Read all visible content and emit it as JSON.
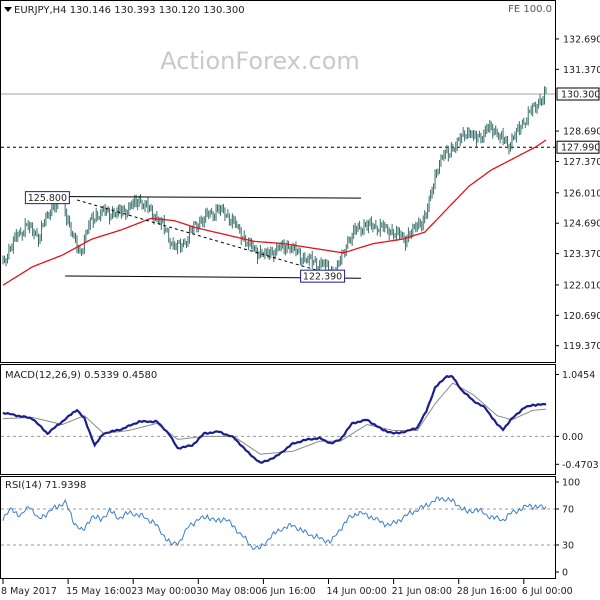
{
  "header": {
    "symbol_line": "EURJPY,H4  130.146 130.393 130.120 130.300",
    "fe_label": "FE 100.0"
  },
  "watermark": "ActionForex.com",
  "colors": {
    "bars": "#3a6f6a",
    "sma": "#e0141b",
    "macd_line": "#1b1f8c",
    "macd_signal": "#8a8a8a",
    "rsi": "#3d7fcb",
    "grid": "#cccccc",
    "axis": "#000000",
    "flag_bg": "#ffffff",
    "flag_border": "#1b1f8c"
  },
  "chart_data": [
    {
      "type": "line",
      "name": "price",
      "title": "EURJPY,H4  130.146 130.393 130.120 130.300",
      "ylim": [
        118.75,
        133.6
      ],
      "y_ticks": [
        "132.690",
        "131.370",
        "130.300",
        "128.690",
        "127.990",
        "127.370",
        "126.010",
        "124.690",
        "123.370",
        "122.010",
        "120.690",
        "119.370"
      ],
      "y_tick_values": [
        132.69,
        131.37,
        130.3,
        128.69,
        127.99,
        127.37,
        126.01,
        124.69,
        123.37,
        122.01,
        120.69,
        119.37
      ],
      "last_price_label": "130.300",
      "last_price": 130.3,
      "horizontal_level": 127.99,
      "horizontal_level_label": "127.990",
      "x_labels": [
        "8 May 2017",
        "15 May 16:00",
        "23 May 00:00",
        "30 May 08:00",
        "6 Jun 16:00",
        "14 Jun 00:00",
        "21 Jun 08:00",
        "28 Jun 16:00",
        "6 Jul 00:00"
      ],
      "x_label_index": [
        0,
        44,
        88,
        132,
        176,
        220,
        264,
        308,
        352
      ],
      "n_bars": 368,
      "close_anchors": [
        [
          0,
          123.0
        ],
        [
          8,
          124.0
        ],
        [
          16,
          124.6
        ],
        [
          24,
          124.1
        ],
        [
          32,
          125.3
        ],
        [
          40,
          125.8
        ],
        [
          46,
          124.3
        ],
        [
          52,
          123.4
        ],
        [
          60,
          124.9
        ],
        [
          68,
          125.2
        ],
        [
          76,
          125.1
        ],
        [
          84,
          125.3
        ],
        [
          92,
          125.7
        ],
        [
          100,
          125.2
        ],
        [
          108,
          124.6
        ],
        [
          116,
          123.6
        ],
        [
          122,
          123.8
        ],
        [
          130,
          124.6
        ],
        [
          138,
          125.0
        ],
        [
          146,
          125.3
        ],
        [
          154,
          124.9
        ],
        [
          162,
          124.1
        ],
        [
          170,
          123.5
        ],
        [
          178,
          123.3
        ],
        [
          186,
          123.6
        ],
        [
          194,
          123.7
        ],
        [
          202,
          123.2
        ],
        [
          210,
          123.0
        ],
        [
          216,
          122.9
        ],
        [
          222,
          122.6
        ],
        [
          226,
          122.7
        ],
        [
          232,
          123.8
        ],
        [
          240,
          124.5
        ],
        [
          248,
          124.6
        ],
        [
          256,
          124.5
        ],
        [
          264,
          124.3
        ],
        [
          272,
          124.0
        ],
        [
          280,
          124.6
        ],
        [
          286,
          125.0
        ],
        [
          290,
          126.2
        ],
        [
          294,
          127.2
        ],
        [
          300,
          127.8
        ],
        [
          306,
          128.0
        ],
        [
          312,
          128.7
        ],
        [
          318,
          128.4
        ],
        [
          324,
          128.5
        ],
        [
          330,
          128.9
        ],
        [
          336,
          128.4
        ],
        [
          342,
          128.1
        ],
        [
          348,
          128.7
        ],
        [
          354,
          129.3
        ],
        [
          360,
          129.8
        ],
        [
          364,
          130.1
        ],
        [
          367,
          130.3
        ]
      ],
      "ma_anchors": [
        [
          0,
          122.0
        ],
        [
          20,
          122.8
        ],
        [
          40,
          123.3
        ],
        [
          60,
          124.0
        ],
        [
          80,
          124.4
        ],
        [
          100,
          124.9
        ],
        [
          116,
          124.8
        ],
        [
          130,
          124.5
        ],
        [
          150,
          124.2
        ],
        [
          170,
          123.9
        ],
        [
          190,
          123.8
        ],
        [
          210,
          123.6
        ],
        [
          230,
          123.4
        ],
        [
          250,
          123.8
        ],
        [
          270,
          124.0
        ],
        [
          285,
          124.3
        ],
        [
          300,
          125.3
        ],
        [
          315,
          126.3
        ],
        [
          330,
          127.0
        ],
        [
          345,
          127.5
        ],
        [
          360,
          128.0
        ],
        [
          367,
          128.3
        ]
      ],
      "annotations": [
        {
          "text": "125.800",
          "at_index": 30,
          "value": 125.8
        },
        {
          "text": "122.390",
          "at_index": 216,
          "value": 122.39
        }
      ],
      "trendlines": [
        {
          "from": [
            30,
            125.85
          ],
          "to": [
            242,
            125.78
          ],
          "style": "solid"
        },
        {
          "from": [
            42,
            122.4
          ],
          "to": [
            242,
            122.3
          ],
          "style": "solid"
        },
        {
          "from": [
            50,
            125.7
          ],
          "to": [
            220,
            122.5
          ],
          "style": "dashed"
        }
      ]
    },
    {
      "type": "line",
      "name": "macd",
      "title": "MACD(12,26,9) 0.5339 0.4580",
      "y_ticks": [
        "1.0454",
        "0.00",
        "-0.4703"
      ],
      "y_tick_values": [
        1.0454,
        0.0,
        -0.4703
      ],
      "ylim": [
        -0.6,
        1.12
      ],
      "macd_anchors": [
        [
          0,
          0.4
        ],
        [
          10,
          0.35
        ],
        [
          20,
          0.3
        ],
        [
          30,
          0.05
        ],
        [
          40,
          0.25
        ],
        [
          50,
          0.45
        ],
        [
          55,
          0.3
        ],
        [
          62,
          -0.15
        ],
        [
          68,
          0.05
        ],
        [
          80,
          0.12
        ],
        [
          92,
          0.25
        ],
        [
          104,
          0.25
        ],
        [
          112,
          0.05
        ],
        [
          118,
          -0.2
        ],
        [
          128,
          -0.15
        ],
        [
          136,
          0.05
        ],
        [
          146,
          0.08
        ],
        [
          156,
          -0.02
        ],
        [
          166,
          -0.28
        ],
        [
          174,
          -0.45
        ],
        [
          184,
          -0.35
        ],
        [
          196,
          -0.12
        ],
        [
          206,
          -0.05
        ],
        [
          214,
          -0.03
        ],
        [
          222,
          -0.12
        ],
        [
          228,
          -0.05
        ],
        [
          236,
          0.22
        ],
        [
          246,
          0.28
        ],
        [
          256,
          0.12
        ],
        [
          264,
          0.05
        ],
        [
          272,
          0.08
        ],
        [
          280,
          0.15
        ],
        [
          286,
          0.42
        ],
        [
          292,
          0.82
        ],
        [
          300,
          1.02
        ],
        [
          304,
          1.0
        ],
        [
          310,
          0.78
        ],
        [
          318,
          0.6
        ],
        [
          326,
          0.48
        ],
        [
          334,
          0.2
        ],
        [
          338,
          0.12
        ],
        [
          344,
          0.3
        ],
        [
          352,
          0.48
        ],
        [
          358,
          0.53
        ],
        [
          367,
          0.54
        ]
      ],
      "signal_anchors": [
        [
          0,
          0.3
        ],
        [
          20,
          0.32
        ],
        [
          40,
          0.2
        ],
        [
          55,
          0.35
        ],
        [
          68,
          0.05
        ],
        [
          85,
          0.1
        ],
        [
          104,
          0.22
        ],
        [
          118,
          -0.05
        ],
        [
          136,
          0.0
        ],
        [
          156,
          0.0
        ],
        [
          174,
          -0.3
        ],
        [
          196,
          -0.25
        ],
        [
          214,
          -0.08
        ],
        [
          228,
          -0.08
        ],
        [
          246,
          0.2
        ],
        [
          264,
          0.1
        ],
        [
          280,
          0.1
        ],
        [
          292,
          0.55
        ],
        [
          304,
          0.9
        ],
        [
          318,
          0.7
        ],
        [
          334,
          0.35
        ],
        [
          344,
          0.28
        ],
        [
          358,
          0.44
        ],
        [
          367,
          0.46
        ]
      ],
      "grid_levels": [
        0.0
      ]
    },
    {
      "type": "line",
      "name": "rsi",
      "title": "RSI(14) 71.9398",
      "y_ticks": [
        "100",
        "70",
        "30",
        "0"
      ],
      "y_tick_values": [
        100,
        70,
        30,
        0
      ],
      "ylim": [
        0,
        100
      ],
      "grid_levels": [
        70,
        30
      ],
      "rsi_anchors": [
        [
          0,
          60
        ],
        [
          6,
          70
        ],
        [
          12,
          62
        ],
        [
          18,
          74
        ],
        [
          24,
          58
        ],
        [
          30,
          66
        ],
        [
          36,
          72
        ],
        [
          42,
          78
        ],
        [
          48,
          55
        ],
        [
          54,
          45
        ],
        [
          60,
          62
        ],
        [
          66,
          58
        ],
        [
          72,
          68
        ],
        [
          78,
          60
        ],
        [
          86,
          66
        ],
        [
          94,
          62
        ],
        [
          102,
          55
        ],
        [
          108,
          42
        ],
        [
          114,
          30
        ],
        [
          120,
          35
        ],
        [
          126,
          52
        ],
        [
          132,
          58
        ],
        [
          138,
          62
        ],
        [
          144,
          56
        ],
        [
          150,
          60
        ],
        [
          156,
          50
        ],
        [
          162,
          40
        ],
        [
          168,
          28
        ],
        [
          174,
          26
        ],
        [
          180,
          38
        ],
        [
          188,
          48
        ],
        [
          196,
          52
        ],
        [
          204,
          44
        ],
        [
          210,
          40
        ],
        [
          216,
          36
        ],
        [
          222,
          34
        ],
        [
          228,
          48
        ],
        [
          234,
          60
        ],
        [
          240,
          66
        ],
        [
          248,
          62
        ],
        [
          256,
          55
        ],
        [
          262,
          52
        ],
        [
          268,
          58
        ],
        [
          276,
          66
        ],
        [
          284,
          72
        ],
        [
          290,
          78
        ],
        [
          296,
          82
        ],
        [
          302,
          80
        ],
        [
          308,
          74
        ],
        [
          314,
          66
        ],
        [
          320,
          70
        ],
        [
          326,
          64
        ],
        [
          332,
          60
        ],
        [
          338,
          58
        ],
        [
          344,
          66
        ],
        [
          350,
          70
        ],
        [
          356,
          74
        ],
        [
          362,
          72
        ],
        [
          367,
          72
        ]
      ]
    }
  ]
}
